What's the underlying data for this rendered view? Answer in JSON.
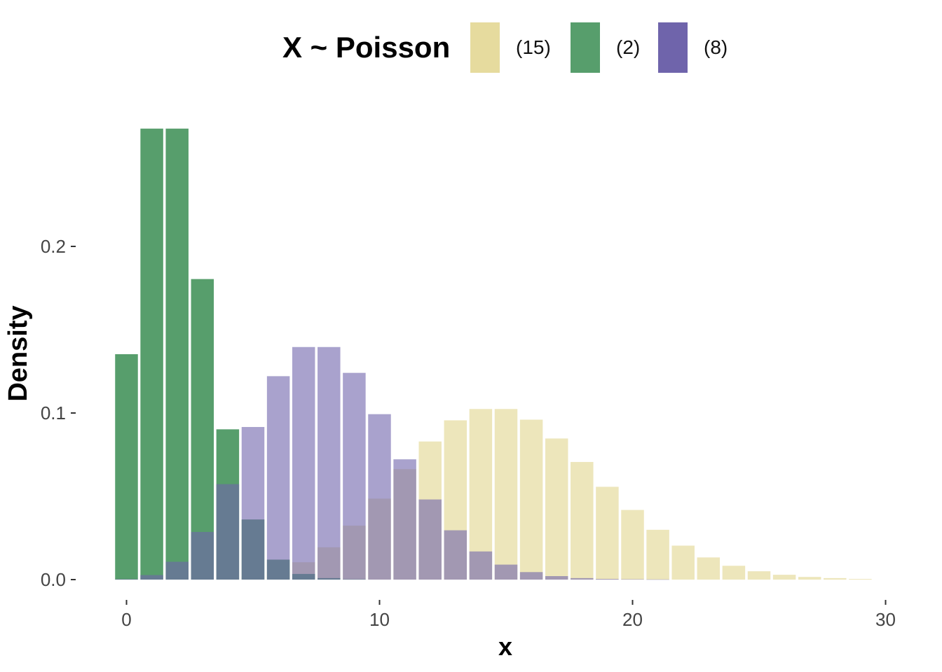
{
  "chart_data": {
    "type": "bar",
    "title": "",
    "xlabel": "x",
    "ylabel": "Density",
    "xlim": [
      -0.5,
      29.5
    ],
    "ylim": [
      0,
      0.28
    ],
    "x_ticks": [
      0,
      10,
      20,
      30
    ],
    "x_tick_labels": [
      "0",
      "10",
      "20",
      "30"
    ],
    "y_ticks": [
      0,
      0.1,
      0.2
    ],
    "y_tick_labels": [
      "0.0",
      "0.1",
      "0.2"
    ],
    "grid": false,
    "legend": {
      "title": "X ~ Poisson",
      "placement": "top",
      "entries": [
        {
          "label": "(15)",
          "color": "#E6DB9E"
        },
        {
          "label": "(2)",
          "color": "#579E6C"
        },
        {
          "label": "(8)",
          "color": "#6F64AB"
        }
      ]
    },
    "x": [
      0,
      1,
      2,
      3,
      4,
      5,
      6,
      7,
      8,
      9,
      10,
      11,
      12,
      13,
      14,
      15,
      16,
      17,
      18,
      19,
      20,
      21,
      22,
      23,
      24,
      25,
      26,
      27,
      28,
      29
    ],
    "series": [
      {
        "name": "(15)",
        "color": "#E6DB9E",
        "opacity": 0.7,
        "values": [
          0.0,
          0.0,
          0.0,
          0.0002,
          0.0006,
          0.0019,
          0.0048,
          0.0104,
          0.0194,
          0.0324,
          0.0486,
          0.0663,
          0.0829,
          0.0956,
          0.1024,
          0.1024,
          0.096,
          0.0847,
          0.0706,
          0.0557,
          0.0418,
          0.0299,
          0.0204,
          0.0133,
          0.0083,
          0.005,
          0.0029,
          0.0016,
          0.0009,
          0.0004
        ]
      },
      {
        "name": "(2)",
        "color": "#579E6C",
        "opacity": 1.0,
        "values": [
          0.1353,
          0.2707,
          0.2707,
          0.1804,
          0.0902,
          0.0361,
          0.012,
          0.0034,
          0.0009,
          0.0002,
          0.0,
          0.0,
          0.0,
          0.0,
          0.0,
          0.0,
          0.0,
          0.0,
          0.0,
          0.0,
          0.0,
          0.0,
          0.0,
          0.0,
          0.0,
          0.0,
          0.0,
          0.0,
          0.0,
          0.0
        ]
      },
      {
        "name": "(8)",
        "color": "#6F64AB",
        "opacity": 0.6,
        "values": [
          0.0003,
          0.0027,
          0.0107,
          0.0286,
          0.0573,
          0.0916,
          0.1221,
          0.1396,
          0.1396,
          0.1241,
          0.0993,
          0.0722,
          0.0481,
          0.0296,
          0.0169,
          0.009,
          0.0045,
          0.0021,
          0.0009,
          0.0004,
          0.0002,
          0.0001,
          0.0,
          0.0,
          0.0,
          0.0,
          0.0,
          0.0,
          0.0,
          0.0
        ]
      }
    ]
  }
}
